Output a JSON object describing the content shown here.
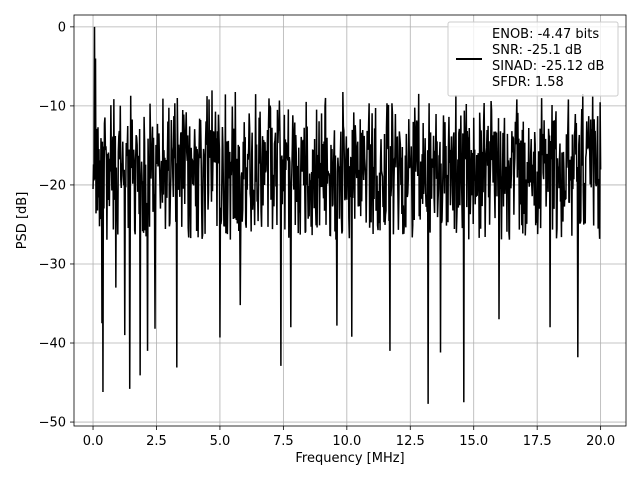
{
  "chart_data": {
    "type": "line",
    "title": "",
    "xlabel": "Frequency [MHz]",
    "ylabel": "PSD [dB]",
    "xlim": [
      -0.75,
      21.0
    ],
    "ylim": [
      -50.5,
      1.5
    ],
    "xticks": [
      0.0,
      2.5,
      5.0,
      7.5,
      10.0,
      12.5,
      15.0,
      17.5,
      20.0
    ],
    "xtick_labels": [
      "0.0",
      "2.5",
      "5.0",
      "7.5",
      "10.0",
      "12.5",
      "15.0",
      "17.5",
      "20.0"
    ],
    "yticks": [
      0,
      -10,
      -20,
      -30,
      -40,
      -50
    ],
    "ytick_labels": [
      "0",
      "−10",
      "−20",
      "−30",
      "−40",
      "−50"
    ],
    "grid": true,
    "legend_position": "top-right",
    "legend": [
      "ENOB: -4.47 bits",
      "SNR: -25.1 dB",
      "SINAD: -25.12 dB",
      "SFDR: 1.58"
    ],
    "series": [
      {
        "color": "#000000",
        "x_range": [
          0.0,
          20.0
        ],
        "num_points": 1025,
        "noise_floor_db": -16,
        "upper_envelope_db": -8,
        "lower_envelope_db": -27,
        "peaks": [
          {
            "x": 0.05,
            "y": 0.0
          },
          {
            "x": 0.1,
            "y": -4.0
          }
        ],
        "deep_nulls": [
          {
            "x": 0.35,
            "y": -37.5
          },
          {
            "x": 0.4,
            "y": -46.2
          },
          {
            "x": 0.9,
            "y": -33.0
          },
          {
            "x": 1.25,
            "y": -39.0
          },
          {
            "x": 1.45,
            "y": -45.8
          },
          {
            "x": 1.85,
            "y": -44.1
          },
          {
            "x": 2.15,
            "y": -41.0
          },
          {
            "x": 2.45,
            "y": -38.2
          },
          {
            "x": 3.3,
            "y": -43.1
          },
          {
            "x": 5.0,
            "y": -39.3
          },
          {
            "x": 5.8,
            "y": -35.2
          },
          {
            "x": 7.4,
            "y": -42.9
          },
          {
            "x": 7.8,
            "y": -38.0
          },
          {
            "x": 9.6,
            "y": -37.8
          },
          {
            "x": 10.2,
            "y": -39.2
          },
          {
            "x": 11.7,
            "y": -41.0
          },
          {
            "x": 13.2,
            "y": -47.7
          },
          {
            "x": 13.7,
            "y": -41.2
          },
          {
            "x": 14.6,
            "y": -47.5
          },
          {
            "x": 16.0,
            "y": -37.0
          },
          {
            "x": 18.0,
            "y": -38.0
          },
          {
            "x": 19.1,
            "y": -41.8
          }
        ]
      }
    ]
  }
}
